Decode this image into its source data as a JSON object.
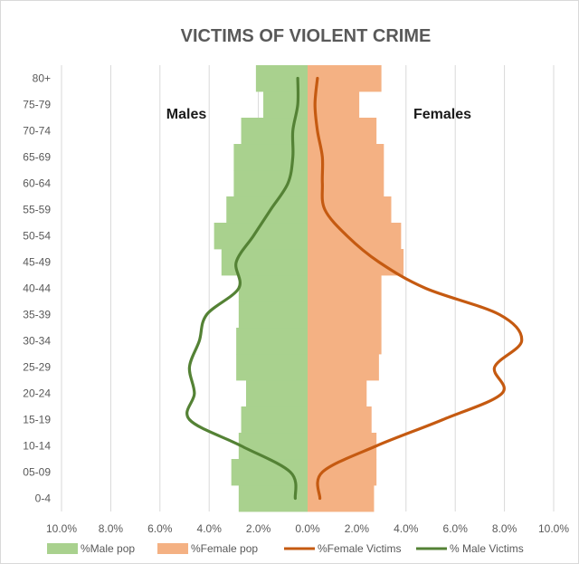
{
  "chart_data": {
    "type": "bar",
    "subtype": "population-pyramid-with-lines",
    "title": "VICTIMS OF VIOLENT CRIME",
    "annotations": {
      "left": "Males",
      "right": "Females"
    },
    "categories": [
      "0-4",
      "05-09",
      "10-14",
      "15-19",
      "20-24",
      "25-29",
      "30-34",
      "35-39",
      "40-44",
      "45-49",
      "50-54",
      "55-59",
      "60-64",
      "65-69",
      "70-74",
      "75-79",
      "80+"
    ],
    "x_axis": {
      "min": -10,
      "max": 10,
      "ticks": [
        -10,
        -8,
        -6,
        -4,
        -2,
        0,
        2,
        4,
        6,
        8,
        10
      ],
      "tick_labels": [
        "10.0%",
        "8.0%",
        "6.0%",
        "4.0%",
        "2.0%",
        "0.0%",
        "2.0%",
        "4.0%",
        "6.0%",
        "8.0%",
        "10.0%"
      ]
    },
    "grid": "vertical",
    "legend_position": "bottom",
    "series": [
      {
        "name": "%Male pop",
        "kind": "bar",
        "side": "left",
        "color": "#a9d18e",
        "values": [
          2.8,
          3.1,
          2.8,
          2.7,
          2.5,
          2.9,
          2.9,
          2.8,
          2.8,
          3.5,
          3.8,
          3.3,
          3.0,
          3.0,
          2.7,
          1.8,
          2.1
        ]
      },
      {
        "name": "%Female pop",
        "kind": "bar",
        "side": "right",
        "color": "#f4b183",
        "values": [
          2.7,
          2.8,
          2.8,
          2.6,
          2.4,
          2.9,
          3.0,
          3.0,
          3.0,
          3.9,
          3.8,
          3.4,
          3.1,
          3.1,
          2.8,
          2.1,
          3.0
        ]
      },
      {
        "name": "%Female Victims",
        "kind": "line",
        "side": "right",
        "color": "#c55a11",
        "values": [
          0.5,
          0.6,
          2.8,
          5.5,
          7.9,
          7.6,
          8.7,
          7.8,
          4.8,
          2.9,
          1.6,
          0.7,
          0.6,
          0.6,
          0.4,
          0.3,
          0.4
        ]
      },
      {
        "name": "% Male Victims",
        "kind": "line",
        "side": "left",
        "color": "#548235",
        "values": [
          0.5,
          0.7,
          2.7,
          4.8,
          4.6,
          4.8,
          4.4,
          4.1,
          2.8,
          2.9,
          2.2,
          1.5,
          0.8,
          0.6,
          0.6,
          0.4,
          0.4
        ]
      }
    ]
  }
}
